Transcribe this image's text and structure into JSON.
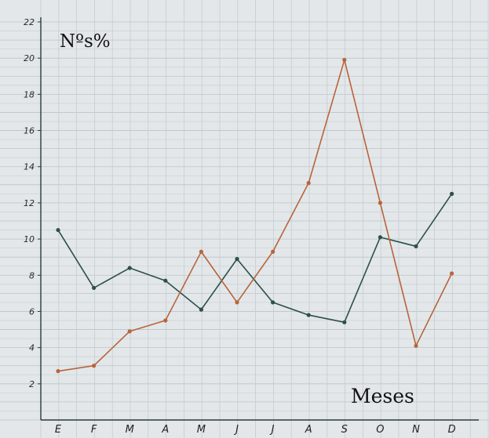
{
  "chart_data": {
    "type": "line",
    "ylabel": "Nºs%",
    "xlabel": "Meses",
    "categories": [
      "E",
      "F",
      "M",
      "A",
      "M",
      "J",
      "J",
      "A",
      "S",
      "O",
      "N",
      "D"
    ],
    "yticks": [
      "2",
      "4",
      "6",
      "8",
      "10",
      "12",
      "14",
      "16",
      "18",
      "20",
      "22"
    ],
    "ylim": [
      0,
      22
    ],
    "grid": true,
    "series": [
      {
        "color": "#2d4f4c",
        "values": [
          10.5,
          7.3,
          8.4,
          7.7,
          6.1,
          8.9,
          6.5,
          5.8,
          5.4,
          10.1,
          9.6,
          12.5
        ]
      },
      {
        "color": "#b8643c",
        "values": [
          2.7,
          3.0,
          4.9,
          5.5,
          9.3,
          6.5,
          9.3,
          13.1,
          19.9,
          12.0,
          4.1,
          8.1
        ]
      }
    ]
  }
}
